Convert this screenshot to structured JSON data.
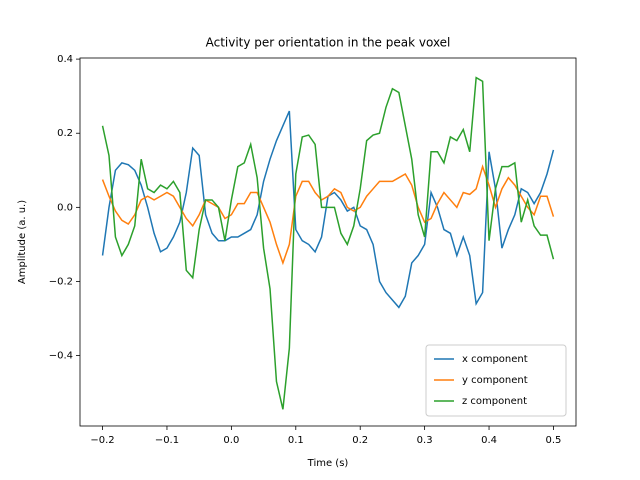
{
  "chart_data": {
    "type": "line",
    "title": "Activity per orientation in the peak voxel",
    "x_label": "Time (s)",
    "y_label": "Amplitude (a. u.)",
    "x": [
      -0.2,
      -0.19,
      -0.18,
      -0.17,
      -0.16,
      -0.15,
      -0.14,
      -0.13,
      -0.12,
      -0.11,
      -0.1,
      -0.09,
      -0.08,
      -0.07,
      -0.06,
      -0.05,
      -0.04,
      -0.03,
      -0.02,
      -0.01,
      0,
      0.01,
      0.02,
      0.03,
      0.04,
      0.05,
      0.06,
      0.07,
      0.08,
      0.09,
      0.1,
      0.11,
      0.12,
      0.13,
      0.14,
      0.15,
      0.16,
      0.17,
      0.18,
      0.19,
      0.2,
      0.21,
      0.22,
      0.23,
      0.24,
      0.25,
      0.26,
      0.27,
      0.28,
      0.29,
      0.3,
      0.31,
      0.32,
      0.33,
      0.34,
      0.35,
      0.36,
      0.37,
      0.38,
      0.39,
      0.4,
      0.41,
      0.42,
      0.43,
      0.44,
      0.45,
      0.46,
      0.47,
      0.48,
      0.49,
      0.5
    ],
    "series": [
      {
        "name": "x component",
        "color": "#1f77b4",
        "values": [
          -0.13,
          0.0,
          0.1,
          0.12,
          0.115,
          0.1,
          0.06,
          0.0,
          -0.07,
          -0.12,
          -0.11,
          -0.08,
          -0.04,
          0.04,
          0.16,
          0.14,
          -0.02,
          -0.07,
          -0.09,
          -0.09,
          -0.08,
          -0.08,
          -0.07,
          -0.06,
          -0.02,
          0.07,
          0.13,
          0.18,
          0.22,
          0.26,
          -0.06,
          -0.09,
          -0.1,
          -0.12,
          -0.08,
          0.03,
          0.04,
          0.02,
          -0.01,
          0.0,
          -0.05,
          -0.06,
          -0.1,
          -0.2,
          -0.23,
          -0.25,
          -0.27,
          -0.24,
          -0.15,
          -0.13,
          -0.1,
          0.04,
          0.0,
          -0.06,
          -0.07,
          -0.13,
          -0.08,
          -0.13,
          -0.26,
          -0.23,
          0.15,
          0.05,
          -0.11,
          -0.06,
          -0.02,
          0.05,
          0.04,
          0.01,
          0.04,
          0.09,
          0.155
        ]
      },
      {
        "name": "y component",
        "color": "#ff7f0e",
        "values": [
          0.075,
          0.03,
          -0.01,
          -0.035,
          -0.045,
          -0.02,
          0.02,
          0.03,
          0.02,
          0.03,
          0.04,
          0.03,
          0.0,
          -0.03,
          -0.05,
          -0.02,
          0.02,
          0.01,
          0.0,
          -0.03,
          -0.02,
          0.01,
          0.01,
          0.04,
          0.04,
          0.0,
          -0.04,
          -0.1,
          -0.15,
          -0.1,
          0.03,
          0.07,
          0.07,
          0.04,
          0.02,
          0.03,
          0.05,
          0.04,
          0.0,
          -0.01,
          0.0,
          0.03,
          0.05,
          0.07,
          0.07,
          0.07,
          0.08,
          0.09,
          0.06,
          0.0,
          -0.04,
          -0.03,
          0.01,
          0.04,
          0.02,
          0.0,
          0.04,
          0.035,
          0.05,
          0.11,
          0.06,
          0.0,
          0.05,
          0.08,
          0.06,
          0.03,
          0.0,
          -0.02,
          0.03,
          0.03,
          -0.025
        ]
      },
      {
        "name": "z component",
        "color": "#2ca02c",
        "values": [
          0.22,
          0.14,
          -0.08,
          -0.13,
          -0.1,
          -0.05,
          0.13,
          0.05,
          0.04,
          0.06,
          0.05,
          0.07,
          0.04,
          -0.17,
          -0.19,
          -0.06,
          0.02,
          0.02,
          0.0,
          -0.09,
          0.02,
          0.11,
          0.12,
          0.17,
          0.08,
          -0.11,
          -0.22,
          -0.47,
          -0.545,
          -0.38,
          0.09,
          0.19,
          0.195,
          0.17,
          0.0,
          0.0,
          0.0,
          -0.07,
          -0.1,
          -0.05,
          0.05,
          0.18,
          0.195,
          0.2,
          0.27,
          0.32,
          0.31,
          0.22,
          0.13,
          -0.02,
          -0.08,
          0.15,
          0.15,
          0.12,
          0.19,
          0.18,
          0.21,
          0.15,
          0.35,
          0.34,
          -0.09,
          0.05,
          0.11,
          0.11,
          0.12,
          -0.04,
          0.02,
          -0.05,
          -0.075,
          -0.075,
          -0.14
        ]
      }
    ],
    "xlim": [
      -0.235,
      0.535
    ],
    "ylim": [
      -0.59,
      0.403
    ],
    "xticks": [
      {
        "value": -0.2,
        "label": "−0.2"
      },
      {
        "value": -0.1,
        "label": "−0.1"
      },
      {
        "value": 0,
        "label": "0.0"
      },
      {
        "value": 0.1,
        "label": "0.1"
      },
      {
        "value": 0.2,
        "label": "0.2"
      },
      {
        "value": 0.3,
        "label": "0.3"
      },
      {
        "value": 0.4,
        "label": "0.4"
      },
      {
        "value": 0.5,
        "label": "0.5"
      }
    ],
    "yticks": [
      {
        "value": -0.4,
        "label": "−0.4"
      },
      {
        "value": -0.2,
        "label": "−0.2"
      },
      {
        "value": 0,
        "label": "0.0"
      },
      {
        "value": 0.2,
        "label": "0.2"
      },
      {
        "value": 0.4,
        "label": "0.4"
      }
    ],
    "legend": "lower right"
  }
}
